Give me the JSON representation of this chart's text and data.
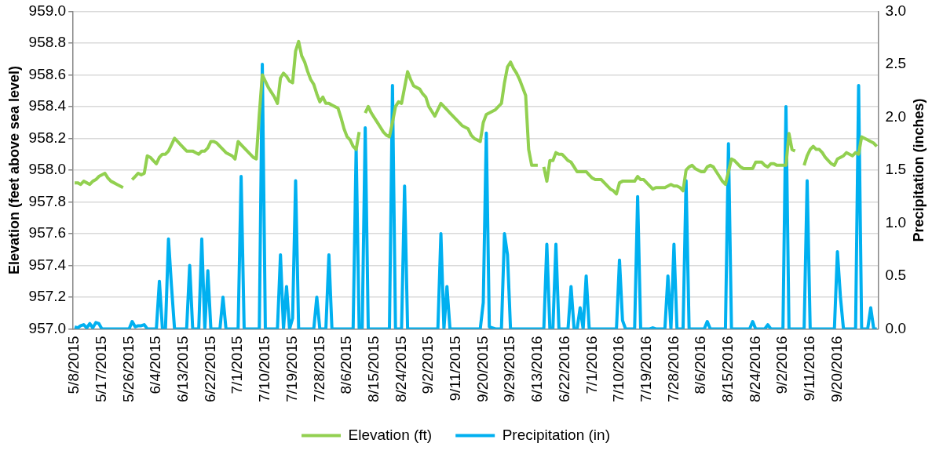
{
  "chart_data": {
    "type": "line",
    "ylabel": "Elevation (feet above sea level)",
    "y2label": "Precipitation (inches)",
    "categories": [
      "5/8/2015",
      null,
      null,
      null,
      null,
      null,
      null,
      null,
      null,
      "5/17/2015",
      null,
      null,
      null,
      null,
      null,
      null,
      null,
      null,
      "5/26/2015",
      null,
      null,
      null,
      null,
      null,
      null,
      null,
      null,
      "6/4/2015",
      null,
      null,
      null,
      null,
      null,
      null,
      null,
      null,
      "6/13/2015",
      null,
      null,
      null,
      null,
      null,
      null,
      null,
      null,
      "6/22/2015",
      null,
      null,
      null,
      null,
      null,
      null,
      null,
      null,
      "7/1/2015",
      null,
      null,
      null,
      null,
      null,
      null,
      null,
      null,
      "7/10/2015",
      null,
      null,
      null,
      null,
      null,
      null,
      null,
      null,
      "7/19/2015",
      null,
      null,
      null,
      null,
      null,
      null,
      null,
      null,
      "7/28/2015",
      null,
      null,
      null,
      null,
      null,
      null,
      null,
      null,
      "8/6/2015",
      null,
      null,
      null,
      null,
      null,
      null,
      null,
      null,
      "8/15/2015",
      null,
      null,
      null,
      null,
      null,
      null,
      null,
      null,
      "8/24/2015",
      null,
      null,
      null,
      null,
      null,
      null,
      null,
      null,
      "9/2/2015",
      null,
      null,
      null,
      null,
      null,
      null,
      null,
      null,
      "9/11/2015",
      null,
      null,
      null,
      null,
      null,
      null,
      null,
      null,
      "9/20/2015",
      null,
      null,
      null,
      null,
      null,
      null,
      null,
      null,
      "9/29/2015",
      null,
      null,
      null,
      null,
      null,
      null,
      null,
      null,
      "6/13/2016",
      null,
      null,
      null,
      null,
      null,
      null,
      null,
      null,
      "6/22/2016",
      null,
      null,
      null,
      null,
      null,
      null,
      null,
      null,
      "7/1/2016",
      null,
      null,
      null,
      null,
      null,
      null,
      null,
      null,
      "7/10/2016",
      null,
      null,
      null,
      null,
      null,
      null,
      null,
      null,
      "7/19/2016",
      null,
      null,
      null,
      null,
      null,
      null,
      null,
      null,
      "7/28/2016",
      null,
      null,
      null,
      null,
      null,
      null,
      null,
      null,
      "8/6/2016",
      null,
      null,
      null,
      null,
      null,
      null,
      null,
      null,
      "8/15/2016",
      null,
      null,
      null,
      null,
      null,
      null,
      null,
      null,
      "8/24/2016",
      null,
      null,
      null,
      null,
      null,
      null,
      null,
      null,
      "9/2/2016",
      null,
      null,
      null,
      null,
      null,
      null,
      null,
      null,
      "9/11/2016",
      null,
      null,
      null,
      null,
      null,
      null,
      null,
      null,
      "9/20/2016",
      null,
      null,
      null,
      null,
      null,
      null,
      null,
      null,
      null,
      null,
      null,
      null,
      null
    ],
    "series": [
      {
        "name": "Elevation (ft)",
        "color": "#92d050",
        "values": [
          957.92,
          957.92,
          957.91,
          957.93,
          957.92,
          957.91,
          957.93,
          957.94,
          957.96,
          957.97,
          957.98,
          957.95,
          957.93,
          957.92,
          957.91,
          957.9,
          957.89,
          null,
          null,
          957.94,
          957.96,
          957.98,
          957.97,
          957.98,
          958.09,
          958.08,
          958.06,
          958.04,
          958.08,
          958.1,
          958.1,
          958.12,
          958.16,
          958.2,
          958.18,
          958.16,
          958.14,
          958.12,
          958.12,
          958.12,
          958.11,
          958.1,
          958.12,
          958.12,
          958.14,
          958.18,
          958.18,
          958.17,
          958.15,
          958.13,
          958.11,
          958.1,
          958.09,
          958.07,
          958.18,
          958.16,
          958.14,
          958.12,
          958.1,
          958.08,
          958.07,
          958.35,
          958.6,
          958.56,
          958.52,
          958.49,
          958.46,
          958.42,
          958.58,
          958.61,
          958.59,
          958.56,
          958.55,
          958.75,
          958.81,
          958.72,
          958.68,
          958.62,
          958.57,
          958.54,
          958.48,
          958.43,
          958.46,
          958.42,
          958.42,
          958.41,
          958.4,
          958.39,
          958.33,
          958.26,
          958.21,
          958.19,
          958.15,
          958.13,
          958.24,
          null,
          958.36,
          958.4,
          958.36,
          958.33,
          958.3,
          958.27,
          958.24,
          958.22,
          958.21,
          958.3,
          958.4,
          958.43,
          958.42,
          958.52,
          958.62,
          958.57,
          958.53,
          958.52,
          958.51,
          958.48,
          958.46,
          958.4,
          958.37,
          958.34,
          958.38,
          958.42,
          958.4,
          958.38,
          958.36,
          958.34,
          958.32,
          958.3,
          958.28,
          958.27,
          958.26,
          958.22,
          958.2,
          958.19,
          958.18,
          958.3,
          958.35,
          958.36,
          958.37,
          958.38,
          958.4,
          958.42,
          958.55,
          958.65,
          958.68,
          958.64,
          958.61,
          958.57,
          958.52,
          958.47,
          958.13,
          958.03,
          958.03,
          958.03,
          null,
          958.02,
          957.93,
          958.06,
          958.06,
          958.11,
          958.1,
          958.1,
          958.08,
          958.06,
          958.05,
          958.02,
          957.99,
          957.99,
          957.99,
          957.99,
          957.97,
          957.95,
          957.94,
          957.94,
          957.94,
          957.92,
          957.9,
          957.88,
          957.87,
          957.85,
          957.92,
          957.93,
          957.93,
          957.93,
          957.93,
          957.93,
          957.96,
          957.94,
          957.94,
          957.92,
          957.9,
          957.88,
          957.89,
          957.89,
          957.89,
          957.89,
          957.9,
          957.91,
          957.9,
          957.9,
          957.89,
          957.87,
          958.0,
          958.02,
          958.03,
          958.01,
          958.0,
          957.99,
          957.99,
          958.02,
          958.03,
          958.02,
          957.99,
          957.96,
          957.93,
          957.91,
          957.99,
          958.07,
          958.06,
          958.04,
          958.02,
          958.01,
          958.01,
          958.01,
          958.01,
          958.05,
          958.05,
          958.05,
          958.03,
          958.02,
          958.04,
          958.04,
          958.03,
          958.03,
          958.03,
          958.03,
          958.23,
          958.13,
          958.12,
          null,
          null,
          958.03,
          958.09,
          958.13,
          958.15,
          958.13,
          958.13,
          958.11,
          958.08,
          958.06,
          958.04,
          958.03,
          958.07,
          958.08,
          958.09,
          958.11,
          958.1,
          958.09,
          958.11,
          958.1,
          958.21,
          958.2,
          958.19,
          958.18,
          958.17,
          958.15
        ]
      },
      {
        "name": "Precipitation (in)",
        "axis": "y2",
        "color": "#00b0f0",
        "values": [
          0.02,
          0.01,
          0.03,
          0.04,
          0.01,
          0.05,
          0.01,
          0.06,
          0.05,
          0,
          0,
          0,
          0,
          0,
          0,
          0,
          0,
          0,
          0,
          0.07,
          0.02,
          0.03,
          0.03,
          0.04,
          0,
          0,
          0,
          0,
          0.45,
          0,
          0,
          0.85,
          0.4,
          0,
          0,
          0,
          0,
          0,
          0.6,
          0,
          0,
          0,
          0.85,
          0,
          0.55,
          0,
          0,
          0,
          0,
          0.3,
          0,
          0,
          0,
          0,
          0,
          1.44,
          0,
          0,
          0,
          0,
          0,
          0,
          2.5,
          0,
          0,
          0,
          0,
          0,
          0.7,
          0,
          0.4,
          0,
          0.1,
          1.4,
          0,
          0,
          0,
          0,
          0,
          0,
          0.3,
          0,
          0,
          0,
          0.7,
          0,
          0,
          0,
          0,
          0,
          0,
          0,
          0,
          1.7,
          0,
          0,
          1.9,
          0,
          0,
          0,
          0,
          0,
          0,
          0,
          0,
          2.3,
          0,
          0,
          0,
          1.35,
          0,
          0,
          0,
          0,
          0,
          0,
          0,
          0,
          0,
          0,
          0,
          0.9,
          0,
          0.4,
          0,
          0,
          0,
          0,
          0,
          0,
          0,
          0,
          0,
          0,
          0,
          0.25,
          1.85,
          0.02,
          0.01,
          0,
          0,
          0,
          0.9,
          0.7,
          0,
          0,
          0,
          0,
          0,
          0,
          0,
          0,
          0,
          0,
          0,
          0,
          0.8,
          0,
          0,
          0.8,
          0,
          0,
          0,
          0,
          0.4,
          0,
          0,
          0.2,
          0,
          0.5,
          0,
          0,
          0,
          0,
          0,
          0,
          0,
          0,
          0,
          0,
          0.65,
          0.08,
          0,
          0,
          0,
          0,
          1.25,
          0,
          0,
          0,
          0,
          0.01,
          0,
          0,
          0,
          0,
          0.5,
          0,
          0.8,
          0,
          0,
          0,
          1.4,
          0,
          0,
          0,
          0,
          0,
          0,
          0.07,
          0,
          0,
          0,
          0,
          0,
          0,
          1.75,
          0,
          0,
          0,
          0,
          0,
          0,
          0,
          0.07,
          0,
          0,
          0,
          0,
          0.04,
          0,
          0,
          0,
          0,
          0,
          2.1,
          0,
          0,
          0,
          0,
          0,
          0,
          1.4,
          0,
          0,
          0,
          0,
          0,
          0,
          0,
          0,
          0,
          0.73,
          0.3,
          0,
          0,
          0,
          0,
          0,
          2.3,
          0,
          0,
          0,
          0.2,
          0,
          0
        ]
      }
    ],
    "ylim": [
      957,
      959
    ],
    "yticks": [
      {
        "value": 957,
        "label": "957.0"
      },
      {
        "value": 957.2,
        "label": "957.2"
      },
      {
        "value": 957.4,
        "label": "957.4"
      },
      {
        "value": 957.6,
        "label": "957.6"
      },
      {
        "value": 957.8,
        "label": "957.8"
      },
      {
        "value": 958,
        "label": "958.0"
      },
      {
        "value": 958.2,
        "label": "958.2"
      },
      {
        "value": 958.4,
        "label": "958.4"
      },
      {
        "value": 958.6,
        "label": "958.6"
      },
      {
        "value": 958.8,
        "label": "958.8"
      },
      {
        "value": 959,
        "label": "959.0"
      }
    ],
    "y2lim": [
      0,
      3
    ],
    "y2ticks": [
      {
        "value": 0,
        "label": "0.0"
      },
      {
        "value": 0.5,
        "label": "0.5"
      },
      {
        "value": 1,
        "label": "1.0"
      },
      {
        "value": 1.5,
        "label": "1.5"
      },
      {
        "value": 2,
        "label": "2.0"
      },
      {
        "value": 2.5,
        "label": "2.5"
      },
      {
        "value": 3,
        "label": "3.0"
      }
    ],
    "grid": "y",
    "legend": "bottom",
    "marker": "none",
    "line_style": "solid"
  }
}
